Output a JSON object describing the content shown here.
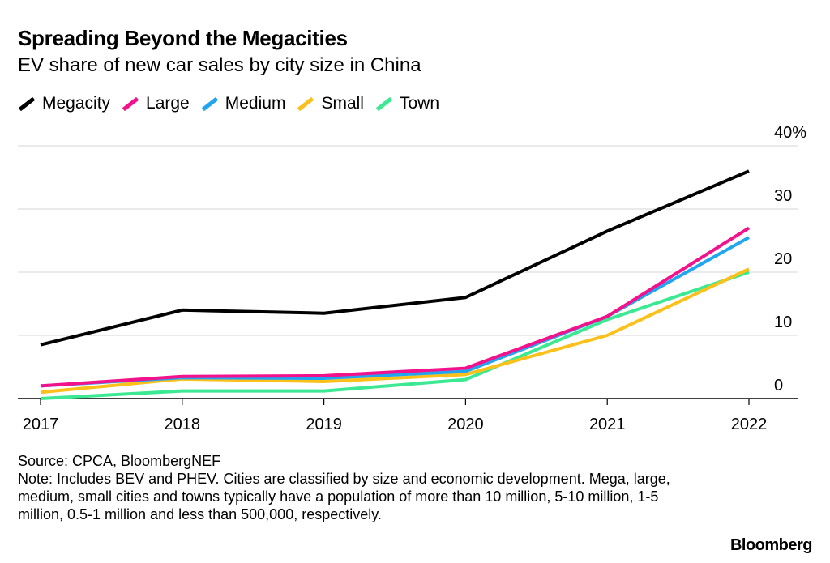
{
  "title": "Spreading Beyond the Megacities",
  "subtitle": "EV share of new car sales by city size in China",
  "legend": [
    {
      "label": "Megacity",
      "color": "#000000"
    },
    {
      "label": "Large",
      "color": "#f2138c"
    },
    {
      "label": "Medium",
      "color": "#22a5f0"
    },
    {
      "label": "Small",
      "color": "#fcc01b"
    },
    {
      "label": "Town",
      "color": "#3de893"
    }
  ],
  "footer": {
    "source": "Source: CPCA, BloombergNEF",
    "note": "Note: Includes BEV and PHEV. Cities are classified by size and economic development. Mega, large, medium, small cities and towns typically have a population of more than 10 million, 5-10 million, 1-5 million, 0.5-1 million and less than 500,000, respectively."
  },
  "brand": "Bloomberg",
  "chart_data": {
    "type": "line",
    "x": [
      "2017",
      "2018",
      "2019",
      "2020",
      "2021",
      "2022"
    ],
    "y_ticks": [
      0,
      10,
      20,
      30,
      40
    ],
    "y_tick_labels": [
      "0",
      "10",
      "20",
      "30",
      "40%"
    ],
    "ylim": [
      0,
      40
    ],
    "grid": true,
    "y_axis_side": "right",
    "series": [
      {
        "name": "Megacity",
        "color": "#000000",
        "values": [
          8.5,
          14,
          13.5,
          16,
          26.5,
          36
        ]
      },
      {
        "name": "Large",
        "color": "#f2138c",
        "values": [
          2,
          3.5,
          3.6,
          4.8,
          13,
          27
        ]
      },
      {
        "name": "Medium",
        "color": "#22a5f0",
        "values": [
          2,
          3.3,
          3.2,
          4.3,
          13,
          25.5
        ]
      },
      {
        "name": "Small",
        "color": "#fcc01b",
        "values": [
          1,
          3.1,
          2.7,
          3.8,
          10,
          20.5
        ]
      },
      {
        "name": "Town",
        "color": "#3de893",
        "values": [
          0,
          1.2,
          1.2,
          3,
          12.5,
          20
        ]
      }
    ]
  }
}
